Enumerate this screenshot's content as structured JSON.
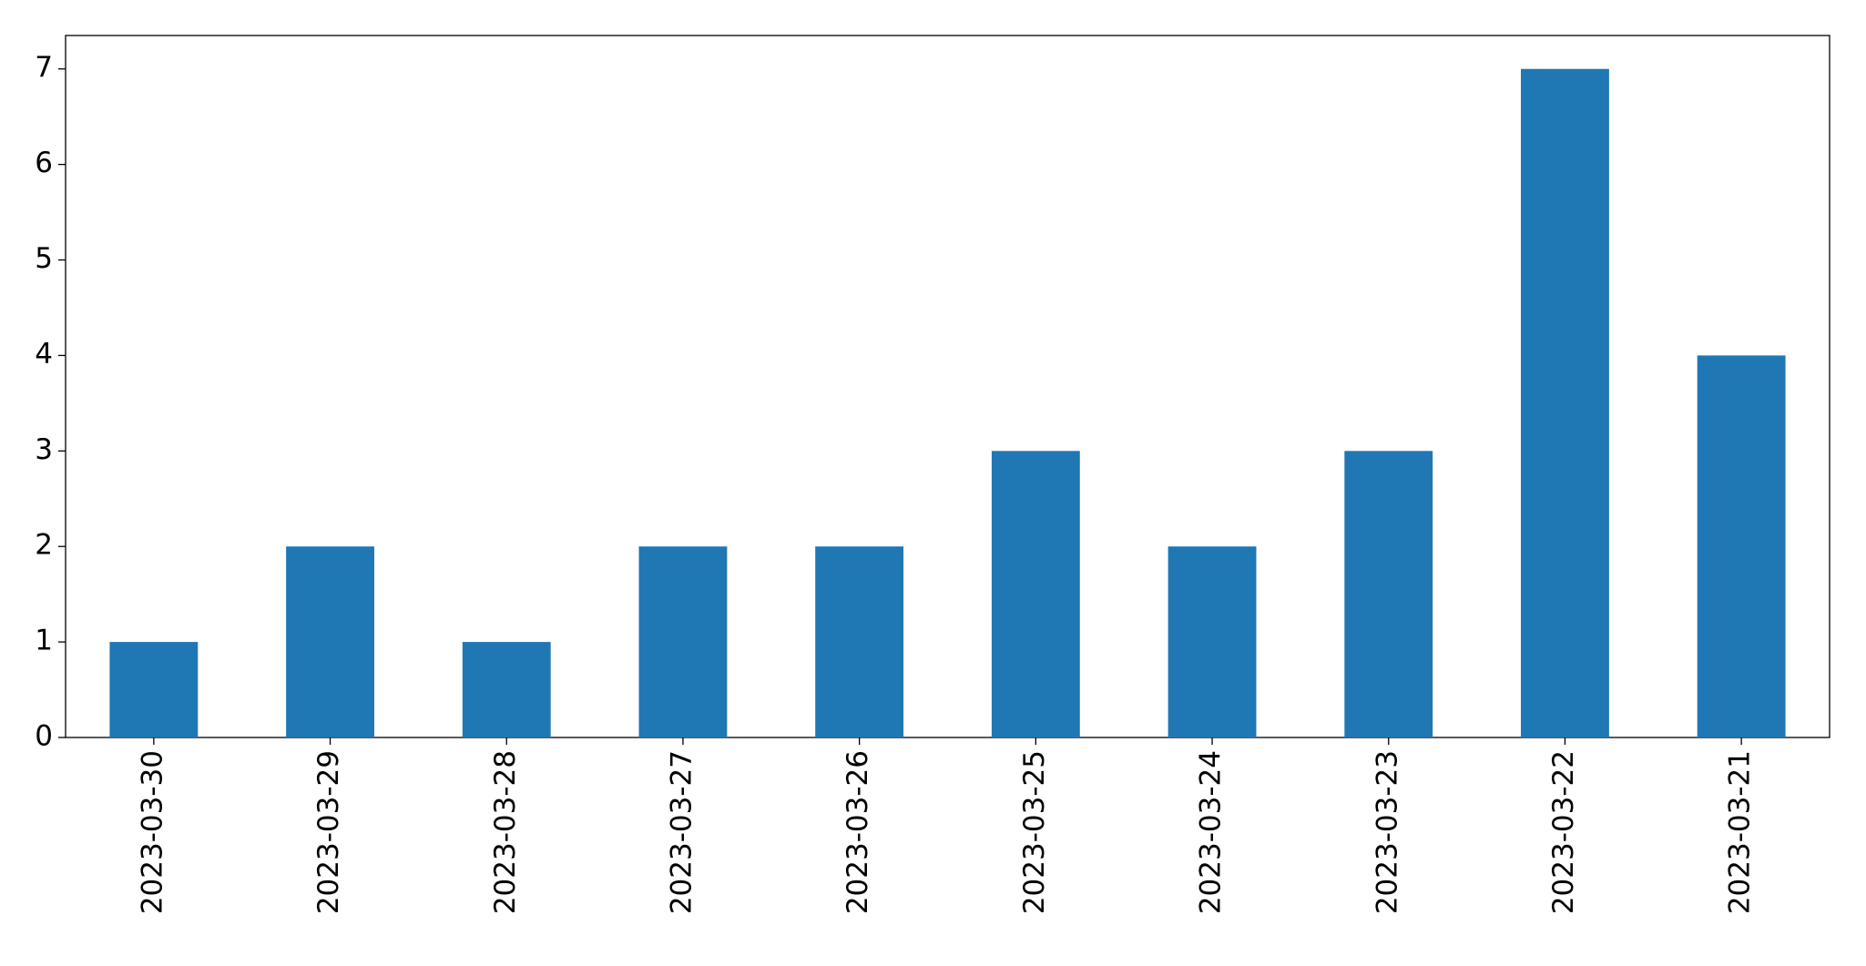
{
  "chart_data": {
    "type": "bar",
    "categories": [
      "2023-03-30",
      "2023-03-29",
      "2023-03-28",
      "2023-03-27",
      "2023-03-26",
      "2023-03-25",
      "2023-03-24",
      "2023-03-23",
      "2023-03-22",
      "2023-03-21"
    ],
    "values": [
      1,
      2,
      1,
      2,
      2,
      3,
      2,
      3,
      7,
      4
    ],
    "color": "#1f77b4",
    "ylim": [
      0,
      7.35
    ],
    "yticks": [
      0,
      1,
      2,
      3,
      4,
      5,
      6,
      7
    ],
    "grid": false
  }
}
